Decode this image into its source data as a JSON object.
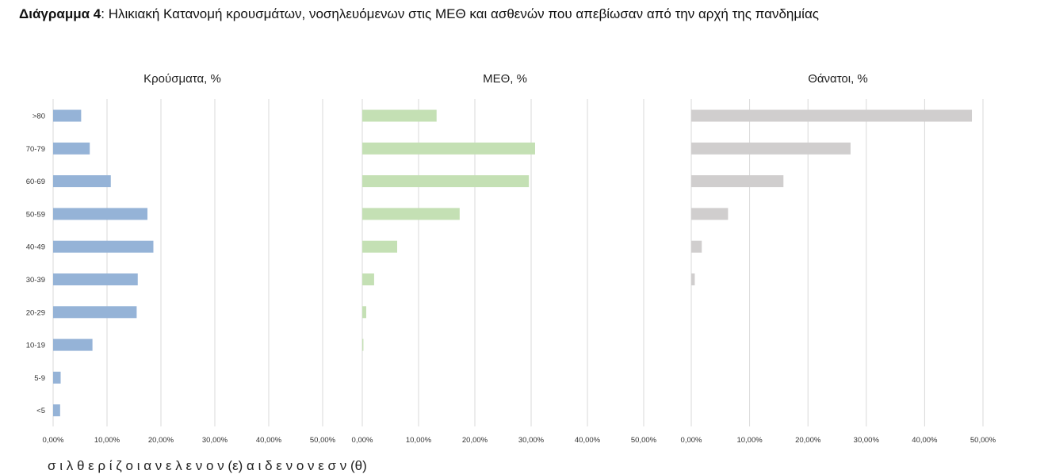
{
  "heading": {
    "label": "Διάγραμμα 4",
    "text": ": Ηλικιακή Κατανομή κρουσμάτων, νοσηλευόμενων στις ΜΕΘ και ασθενών που απεβίωσαν από την αρχή της πανδημίας"
  },
  "chart_data": [
    {
      "type": "bar",
      "orientation": "horizontal",
      "title": "Κρούσματα, %",
      "categories": [
        ">80",
        "70-79",
        "60-69",
        "50-59",
        "40-49",
        "30-39",
        "20-29",
        "10-19",
        "5-9",
        "<5"
      ],
      "values": [
        5.2,
        6.8,
        10.7,
        17.5,
        18.6,
        15.7,
        15.5,
        7.3,
        1.4,
        1.3
      ],
      "xlim": [
        0,
        50
      ],
      "xticks": [
        "0,00%",
        "10,00%",
        "20,00%",
        "30,00%",
        "40,00%",
        "50,00%"
      ],
      "grid": true,
      "color": "#95b3d7"
    },
    {
      "type": "bar",
      "orientation": "horizontal",
      "title": "ΜΕΘ, %",
      "categories": [
        ">80",
        "70-79",
        "60-69",
        "50-59",
        "40-49",
        "30-39",
        "20-29",
        "10-19",
        "5-9",
        "<5"
      ],
      "values": [
        13.2,
        30.7,
        29.6,
        17.3,
        6.2,
        2.1,
        0.7,
        0.2,
        0,
        0
      ],
      "xlim": [
        0,
        50
      ],
      "xticks": [
        "0,00%",
        "10,00%",
        "20,00%",
        "30,00%",
        "40,00%",
        "50,00%"
      ],
      "grid": true,
      "color": "#c4e0b4"
    },
    {
      "type": "bar",
      "orientation": "horizontal",
      "title": "Θάνατοι, %",
      "categories": [
        ">80",
        "70-79",
        "60-69",
        "50-59",
        "40-49",
        "30-39",
        "20-29",
        "10-19",
        "5-9",
        "<5"
      ],
      "values": [
        48.1,
        27.3,
        15.8,
        6.3,
        1.8,
        0.6,
        0,
        0,
        0,
        0
      ],
      "xlim": [
        0,
        50
      ],
      "xticks": [
        "0,00%",
        "10,00%",
        "20,00%",
        "30,00%",
        "40,00%",
        "50,00%"
      ],
      "grid": true,
      "color": "#d0cece"
    }
  ],
  "footer": {
    "text": "σ    ι    λ    θ            ε    ρ    ί    ζ              ο    ι             α    ν    ε              λ    ε    ν    ο    ν              (ε)             α    ι         δ    ε              ν    ο    ν    ε    σ    ν              (θ)"
  }
}
